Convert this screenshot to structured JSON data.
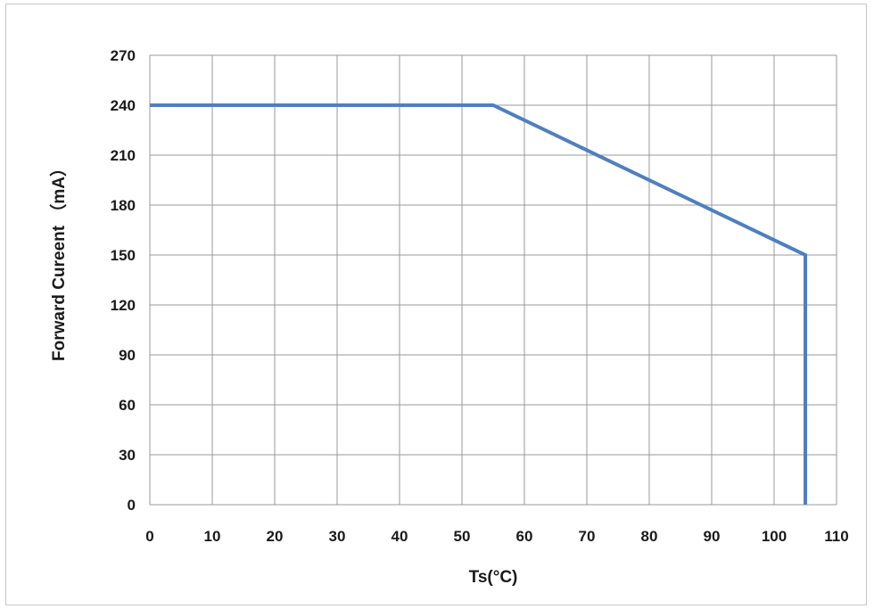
{
  "chart_data": {
    "type": "line",
    "title": "",
    "xlabel": "Ts(°C)",
    "ylabel": "Forward Cureent （mA）",
    "xlim": [
      0,
      110
    ],
    "ylim": [
      0,
      270
    ],
    "x_ticks": [
      0,
      10,
      20,
      30,
      40,
      50,
      60,
      70,
      80,
      90,
      100,
      110
    ],
    "y_ticks": [
      0,
      30,
      60,
      90,
      120,
      150,
      180,
      210,
      240,
      270
    ],
    "grid": true,
    "legend": "none",
    "series": [
      {
        "color": "#4f7fbf",
        "points": [
          {
            "x": 0,
            "y": 240
          },
          {
            "x": 55,
            "y": 240
          },
          {
            "x": 105,
            "y": 150
          },
          {
            "x": 105,
            "y": 0
          }
        ]
      }
    ]
  }
}
